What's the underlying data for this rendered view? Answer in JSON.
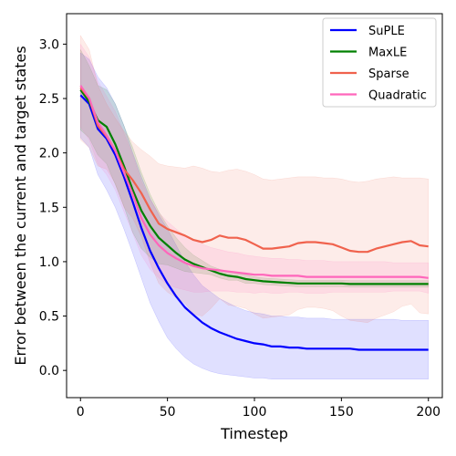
{
  "chart_data": {
    "type": "line",
    "xlabel": "Timestep",
    "ylabel": "Error between the current and target states",
    "xlim": [
      -8,
      208
    ],
    "ylim": [
      -0.25,
      3.28
    ],
    "xticks": [
      0,
      50,
      100,
      150,
      200
    ],
    "yticks": [
      0.0,
      0.5,
      1.0,
      1.5,
      2.0,
      2.5,
      3.0
    ],
    "xtick_labels": [
      "0",
      "50",
      "100",
      "150",
      "200"
    ],
    "ytick_labels": [
      "0.0",
      "0.5",
      "1.0",
      "1.5",
      "2.0",
      "2.5",
      "3.0"
    ],
    "grid": false,
    "legend_position": "top-right",
    "x": [
      0,
      5,
      10,
      15,
      20,
      25,
      30,
      35,
      40,
      45,
      50,
      55,
      60,
      65,
      70,
      75,
      80,
      85,
      90,
      95,
      100,
      105,
      110,
      115,
      120,
      125,
      130,
      135,
      140,
      145,
      150,
      155,
      160,
      165,
      170,
      175,
      180,
      185,
      190,
      195,
      200
    ],
    "series": [
      {
        "name": "SuPLE",
        "color": "#0000ff",
        "values": [
          2.53,
          2.45,
          2.22,
          2.13,
          1.98,
          1.78,
          1.55,
          1.31,
          1.1,
          0.94,
          0.8,
          0.68,
          0.58,
          0.51,
          0.44,
          0.39,
          0.35,
          0.32,
          0.29,
          0.27,
          0.25,
          0.24,
          0.22,
          0.22,
          0.21,
          0.21,
          0.2,
          0.2,
          0.2,
          0.2,
          0.2,
          0.2,
          0.19,
          0.19,
          0.19,
          0.19,
          0.19,
          0.19,
          0.19,
          0.19,
          0.19
        ],
        "upper": [
          2.92,
          2.86,
          2.7,
          2.6,
          2.45,
          2.25,
          2.0,
          1.78,
          1.58,
          1.43,
          1.3,
          1.15,
          1.0,
          0.88,
          0.78,
          0.72,
          0.66,
          0.62,
          0.58,
          0.55,
          0.53,
          0.52,
          0.5,
          0.5,
          0.49,
          0.49,
          0.48,
          0.48,
          0.48,
          0.47,
          0.47,
          0.47,
          0.47,
          0.47,
          0.47,
          0.47,
          0.47,
          0.46,
          0.46,
          0.46,
          0.46
        ],
        "lower": [
          2.14,
          2.05,
          1.8,
          1.66,
          1.5,
          1.3,
          1.08,
          0.85,
          0.62,
          0.45,
          0.3,
          0.2,
          0.12,
          0.06,
          0.02,
          -0.01,
          -0.03,
          -0.04,
          -0.05,
          -0.06,
          -0.07,
          -0.07,
          -0.08,
          -0.08,
          -0.08,
          -0.08,
          -0.08,
          -0.08,
          -0.08,
          -0.08,
          -0.08,
          -0.08,
          -0.08,
          -0.08,
          -0.08,
          -0.08,
          -0.08,
          -0.08,
          -0.08,
          -0.08,
          -0.08
        ]
      },
      {
        "name": "MaxLE",
        "color": "#008000",
        "values": [
          2.58,
          2.47,
          2.3,
          2.24,
          2.08,
          1.88,
          1.66,
          1.47,
          1.33,
          1.22,
          1.15,
          1.08,
          1.02,
          0.98,
          0.95,
          0.92,
          0.89,
          0.87,
          0.86,
          0.84,
          0.83,
          0.82,
          0.815,
          0.81,
          0.805,
          0.8,
          0.8,
          0.8,
          0.8,
          0.8,
          0.8,
          0.795,
          0.795,
          0.795,
          0.795,
          0.795,
          0.795,
          0.795,
          0.795,
          0.795,
          0.795
        ],
        "upper": [
          2.95,
          2.8,
          2.62,
          2.58,
          2.45,
          2.25,
          2.05,
          1.82,
          1.62,
          1.46,
          1.33,
          1.22,
          1.13,
          1.06,
          1.01,
          0.96,
          0.93,
          0.91,
          0.89,
          0.88,
          0.86,
          0.85,
          0.845,
          0.84,
          0.835,
          0.83,
          0.83,
          0.83,
          0.83,
          0.83,
          0.83,
          0.825,
          0.825,
          0.825,
          0.825,
          0.825,
          0.825,
          0.825,
          0.825,
          0.825,
          0.825
        ],
        "lower": [
          2.21,
          2.14,
          1.98,
          1.9,
          1.71,
          1.51,
          1.27,
          1.12,
          1.04,
          0.98,
          0.97,
          0.94,
          0.91,
          0.9,
          0.89,
          0.88,
          0.85,
          0.83,
          0.83,
          0.8,
          0.8,
          0.79,
          0.785,
          0.78,
          0.775,
          0.77,
          0.77,
          0.77,
          0.77,
          0.77,
          0.77,
          0.765,
          0.765,
          0.765,
          0.765,
          0.765,
          0.765,
          0.765,
          0.765,
          0.765,
          0.765
        ]
      },
      {
        "name": "Sparse",
        "color": "#f0624d",
        "values": [
          2.6,
          2.5,
          2.25,
          2.15,
          2.02,
          1.85,
          1.75,
          1.63,
          1.48,
          1.35,
          1.3,
          1.27,
          1.24,
          1.2,
          1.18,
          1.2,
          1.24,
          1.22,
          1.22,
          1.2,
          1.16,
          1.12,
          1.12,
          1.13,
          1.14,
          1.17,
          1.18,
          1.18,
          1.17,
          1.16,
          1.13,
          1.1,
          1.09,
          1.09,
          1.12,
          1.14,
          1.16,
          1.18,
          1.19,
          1.15,
          1.14
        ],
        "upper": [
          3.08,
          2.95,
          2.62,
          2.45,
          2.32,
          2.2,
          2.1,
          2.03,
          1.97,
          1.9,
          1.88,
          1.87,
          1.86,
          1.88,
          1.86,
          1.83,
          1.82,
          1.84,
          1.85,
          1.83,
          1.8,
          1.76,
          1.75,
          1.76,
          1.77,
          1.78,
          1.78,
          1.78,
          1.77,
          1.77,
          1.76,
          1.74,
          1.73,
          1.74,
          1.76,
          1.77,
          1.78,
          1.77,
          1.77,
          1.77,
          1.76
        ],
        "lower": [
          2.12,
          2.05,
          1.88,
          1.85,
          1.72,
          1.5,
          1.4,
          1.23,
          0.99,
          0.8,
          0.72,
          0.67,
          0.62,
          0.52,
          0.5,
          0.57,
          0.66,
          0.6,
          0.59,
          0.57,
          0.52,
          0.48,
          0.49,
          0.5,
          0.51,
          0.56,
          0.58,
          0.58,
          0.57,
          0.55,
          0.5,
          0.46,
          0.45,
          0.44,
          0.48,
          0.51,
          0.54,
          0.59,
          0.61,
          0.53,
          0.52
        ]
      },
      {
        "name": "Quadratic",
        "color": "#ff66bb",
        "values": [
          2.62,
          2.5,
          2.28,
          2.16,
          2.02,
          1.82,
          1.62,
          1.4,
          1.25,
          1.15,
          1.08,
          1.03,
          0.99,
          0.96,
          0.94,
          0.93,
          0.92,
          0.91,
          0.9,
          0.89,
          0.88,
          0.88,
          0.87,
          0.87,
          0.87,
          0.87,
          0.86,
          0.86,
          0.86,
          0.86,
          0.86,
          0.86,
          0.86,
          0.86,
          0.86,
          0.86,
          0.86,
          0.86,
          0.86,
          0.86,
          0.85
        ],
        "upper": [
          3.0,
          2.88,
          2.66,
          2.52,
          2.38,
          2.18,
          1.98,
          1.74,
          1.57,
          1.45,
          1.37,
          1.3,
          1.24,
          1.2,
          1.16,
          1.13,
          1.11,
          1.09,
          1.08,
          1.06,
          1.05,
          1.04,
          1.03,
          1.03,
          1.02,
          1.02,
          1.01,
          1.01,
          1.01,
          1.0,
          1.0,
          1.0,
          1.0,
          1.0,
          1.0,
          1.0,
          0.99,
          0.99,
          0.99,
          0.99,
          0.99
        ],
        "lower": [
          2.24,
          2.12,
          1.9,
          1.8,
          1.66,
          1.46,
          1.26,
          1.06,
          0.93,
          0.85,
          0.79,
          0.76,
          0.74,
          0.72,
          0.72,
          0.73,
          0.73,
          0.73,
          0.72,
          0.72,
          0.71,
          0.72,
          0.71,
          0.71,
          0.72,
          0.72,
          0.71,
          0.71,
          0.71,
          0.72,
          0.72,
          0.72,
          0.72,
          0.72,
          0.72,
          0.72,
          0.73,
          0.73,
          0.73,
          0.73,
          0.71
        ]
      }
    ]
  }
}
